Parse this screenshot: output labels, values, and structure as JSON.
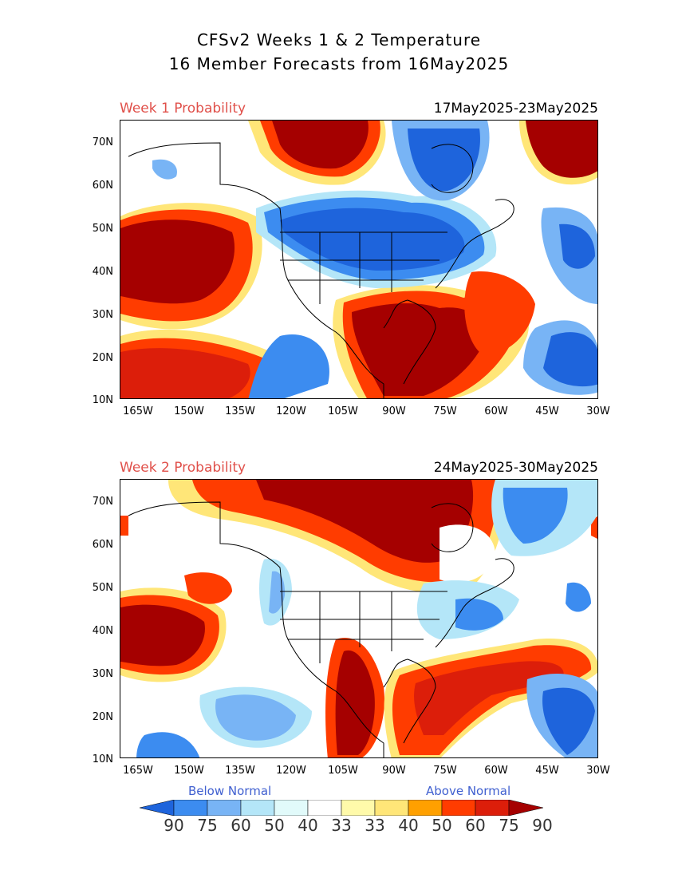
{
  "header": {
    "title_line1": "CFSv2 Weeks 1 & 2 Temperature",
    "title_line2": "16 Member Forecasts from 16May2025"
  },
  "panels": [
    {
      "label": "Week 1 Probability",
      "dates": "17May2025-23May2025"
    },
    {
      "label": "Week 2 Probability",
      "dates": "24May2025-30May2025"
    }
  ],
  "axes": {
    "lat_labels": [
      "70N",
      "60N",
      "50N",
      "40N",
      "30N",
      "20N",
      "10N"
    ],
    "lon_labels": [
      "165W",
      "150W",
      "135W",
      "120W",
      "105W",
      "90W",
      "75W",
      "60W",
      "45W",
      "30W"
    ],
    "lat_range": [
      10,
      75
    ],
    "lon_range": [
      -170,
      -30
    ]
  },
  "legend": {
    "below_label": "Below Normal",
    "above_label": "Above Normal",
    "values": [
      "90",
      "75",
      "60",
      "50",
      "40",
      "33",
      "33",
      "40",
      "50",
      "60",
      "75",
      "90"
    ],
    "colors": [
      "#1e64dc",
      "#3c8cf0",
      "#78b4f5",
      "#b4e6f8",
      "#e1fafa",
      "#ffffff",
      "#fffaaa",
      "#ffe678",
      "#ffa000",
      "#ff3c00",
      "#dc1e0a",
      "#a50000"
    ],
    "below_color": "#4060d0",
    "above_color": "#4060d0"
  }
}
